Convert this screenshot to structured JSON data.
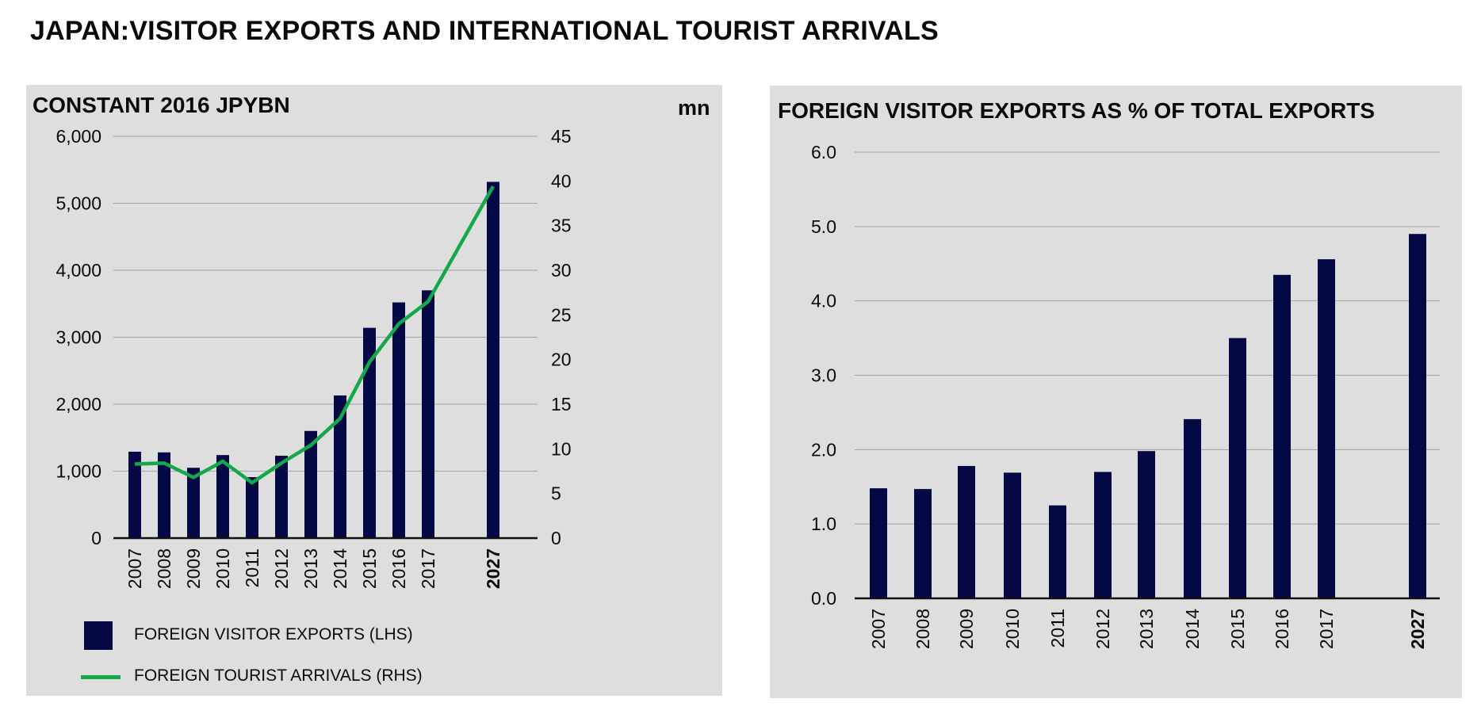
{
  "page_title": "JAPAN:VISITOR EXPORTS AND INTERNATIONAL TOURIST ARRIVALS",
  "colors": {
    "bar": "#040844",
    "line": "#14a84a",
    "panel": "#dededf",
    "grid": "#a3a3a3"
  },
  "chart_data": [
    {
      "type": "bar+line",
      "title": "CONSTANT 2016 JPYBN",
      "right_axis_unit": "mn",
      "categories": [
        "2007",
        "2008",
        "2009",
        "2010",
        "2011",
        "2012",
        "2013",
        "2014",
        "2015",
        "2016",
        "2017",
        "2027"
      ],
      "bold_categories": [
        "2027"
      ],
      "left_axis": {
        "min": 0,
        "max": 6000,
        "ticks": [
          0,
          1000,
          2000,
          3000,
          4000,
          5000,
          6000
        ],
        "tick_labels": [
          "0",
          "1,000",
          "2,000",
          "3,000",
          "4,000",
          "5,000",
          "6,000"
        ]
      },
      "right_axis": {
        "min": 0,
        "max": 45,
        "ticks": [
          0,
          5,
          10,
          15,
          20,
          25,
          30,
          35,
          40,
          45
        ],
        "tick_labels": [
          "0",
          "5",
          "10",
          "15",
          "20",
          "25",
          "30",
          "35",
          "40",
          "45"
        ]
      },
      "series": [
        {
          "name": "FOREIGN VISITOR EXPORTS (LHS)",
          "type": "bar",
          "axis": "left",
          "values": [
            1290,
            1280,
            1050,
            1240,
            910,
            1230,
            1600,
            2130,
            3140,
            3520,
            3700,
            5320
          ]
        },
        {
          "name": "FOREIGN TOURIST ARRIVALS (RHS)",
          "type": "line",
          "axis": "right",
          "values": [
            8.3,
            8.4,
            6.8,
            8.6,
            6.2,
            8.4,
            10.4,
            13.4,
            19.7,
            24.0,
            26.5,
            39.4
          ]
        }
      ],
      "legend": [
        {
          "label": "FOREIGN VISITOR EXPORTS (LHS)",
          "kind": "bar"
        },
        {
          "label": "FOREIGN TOURIST ARRIVALS (RHS)",
          "kind": "line"
        }
      ],
      "grid": true
    },
    {
      "type": "bar",
      "title": "FOREIGN VISITOR EXPORTS AS % OF TOTAL EXPORTS",
      "categories": [
        "2007",
        "2008",
        "2009",
        "2010",
        "2011",
        "2012",
        "2013",
        "2014",
        "2015",
        "2016",
        "2017",
        "2027"
      ],
      "bold_categories": [
        "2027"
      ],
      "y_axis": {
        "min": 0,
        "max": 6,
        "ticks": [
          0,
          1,
          2,
          3,
          4,
          5,
          6
        ],
        "tick_labels": [
          "0.0",
          "1.0",
          "2.0",
          "3.0",
          "4.0",
          "5.0",
          "6.0"
        ]
      },
      "values": [
        1.48,
        1.47,
        1.78,
        1.69,
        1.25,
        1.7,
        1.98,
        2.41,
        3.5,
        4.35,
        4.56,
        4.9
      ],
      "grid": true
    }
  ]
}
